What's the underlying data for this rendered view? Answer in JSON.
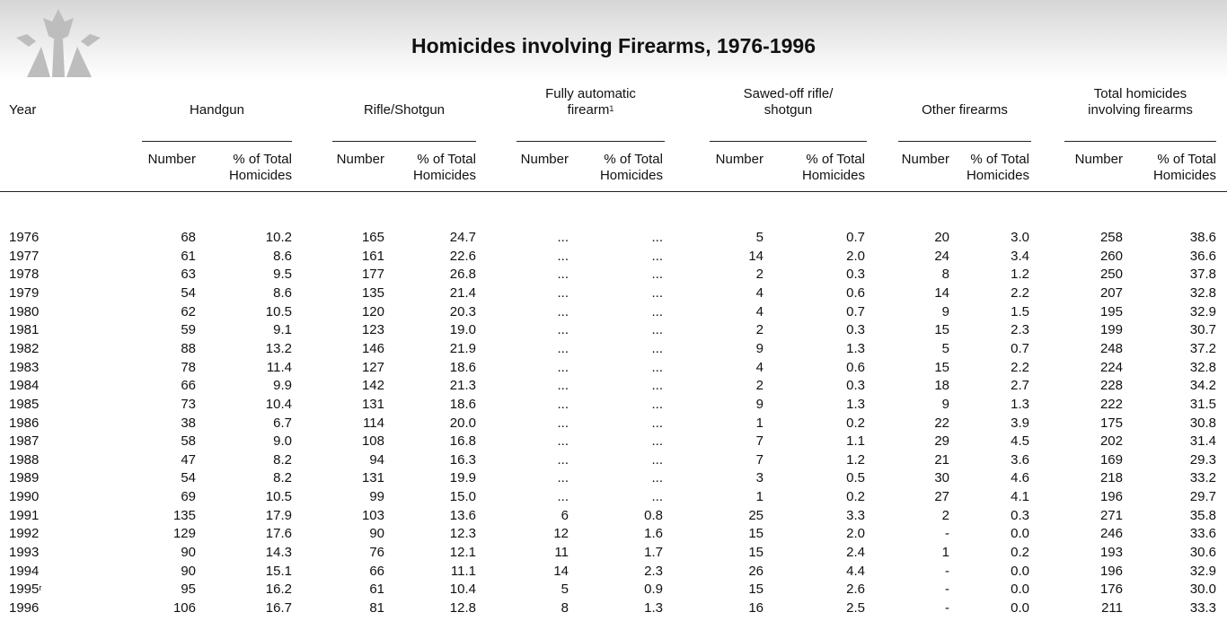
{
  "header": {
    "title": "Homicides involving Firearms, 1976-1996"
  },
  "table": {
    "year_label": "Year",
    "groups": [
      {
        "lines": [
          "Handgun"
        ]
      },
      {
        "lines": [
          "Rifle/Shotgun"
        ]
      },
      {
        "lines": [
          "Fully automatic",
          "firearm"
        ],
        "note": "1"
      },
      {
        "lines": [
          "Sawed-off rifle/",
          "shotgun"
        ]
      },
      {
        "lines": [
          "Other firearms"
        ]
      },
      {
        "lines": [
          "Total homicides",
          "involving firearms"
        ]
      }
    ],
    "subheaders": {
      "number": "Number",
      "percent": [
        "% of Total",
        "Homicides"
      ]
    },
    "rows": [
      {
        "year": "1976",
        "cells": [
          "68",
          "10.2",
          "165",
          "24.7",
          "...",
          "...",
          "5",
          "0.7",
          "20",
          "3.0",
          "258",
          "38.6"
        ]
      },
      {
        "year": "1977",
        "cells": [
          "61",
          "8.6",
          "161",
          "22.6",
          "...",
          "...",
          "14",
          "2.0",
          "24",
          "3.4",
          "260",
          "36.6"
        ]
      },
      {
        "year": "1978",
        "cells": [
          "63",
          "9.5",
          "177",
          "26.8",
          "...",
          "...",
          "2",
          "0.3",
          "8",
          "1.2",
          "250",
          "37.8"
        ]
      },
      {
        "year": "1979",
        "cells": [
          "54",
          "8.6",
          "135",
          "21.4",
          "...",
          "...",
          "4",
          "0.6",
          "14",
          "2.2",
          "207",
          "32.8"
        ]
      },
      {
        "year": "1980",
        "cells": [
          "62",
          "10.5",
          "120",
          "20.3",
          "...",
          "...",
          "4",
          "0.7",
          "9",
          "1.5",
          "195",
          "32.9"
        ]
      },
      {
        "year": "1981",
        "cells": [
          "59",
          "9.1",
          "123",
          "19.0",
          "...",
          "...",
          "2",
          "0.3",
          "15",
          "2.3",
          "199",
          "30.7"
        ]
      },
      {
        "year": "1982",
        "cells": [
          "88",
          "13.2",
          "146",
          "21.9",
          "...",
          "...",
          "9",
          "1.3",
          "5",
          "0.7",
          "248",
          "37.2"
        ]
      },
      {
        "year": "1983",
        "cells": [
          "78",
          "11.4",
          "127",
          "18.6",
          "...",
          "...",
          "4",
          "0.6",
          "15",
          "2.2",
          "224",
          "32.8"
        ]
      },
      {
        "year": "1984",
        "cells": [
          "66",
          "9.9",
          "142",
          "21.3",
          "...",
          "...",
          "2",
          "0.3",
          "18",
          "2.7",
          "228",
          "34.2"
        ]
      },
      {
        "year": "1985",
        "cells": [
          "73",
          "10.4",
          "131",
          "18.6",
          "...",
          "...",
          "9",
          "1.3",
          "9",
          "1.3",
          "222",
          "31.5"
        ]
      },
      {
        "year": "1986",
        "cells": [
          "38",
          "6.7",
          "114",
          "20.0",
          "...",
          "...",
          "1",
          "0.2",
          "22",
          "3.9",
          "175",
          "30.8"
        ]
      },
      {
        "year": "1987",
        "cells": [
          "58",
          "9.0",
          "108",
          "16.8",
          "...",
          "...",
          "7",
          "1.1",
          "29",
          "4.5",
          "202",
          "31.4"
        ]
      },
      {
        "year": "1988",
        "cells": [
          "47",
          "8.2",
          "94",
          "16.3",
          "...",
          "...",
          "7",
          "1.2",
          "21",
          "3.6",
          "169",
          "29.3"
        ]
      },
      {
        "year": "1989",
        "cells": [
          "54",
          "8.2",
          "131",
          "19.9",
          "...",
          "...",
          "3",
          "0.5",
          "30",
          "4.6",
          "218",
          "33.2"
        ]
      },
      {
        "year": "1990",
        "cells": [
          "69",
          "10.5",
          "99",
          "15.0",
          "...",
          "...",
          "1",
          "0.2",
          "27",
          "4.1",
          "196",
          "29.7"
        ]
      },
      {
        "year": "1991",
        "cells": [
          "135",
          "17.9",
          "103",
          "13.6",
          "6",
          "0.8",
          "25",
          "3.3",
          "2",
          "0.3",
          "271",
          "35.8"
        ]
      },
      {
        "year": "1992",
        "cells": [
          "129",
          "17.6",
          "90",
          "12.3",
          "12",
          "1.6",
          "15",
          "2.0",
          "-",
          "0.0",
          "246",
          "33.6"
        ]
      },
      {
        "year": "1993",
        "cells": [
          "90",
          "14.3",
          "76",
          "12.1",
          "11",
          "1.7",
          "15",
          "2.4",
          "1",
          "0.2",
          "193",
          "30.6"
        ]
      },
      {
        "year": "1994",
        "cells": [
          "90",
          "15.1",
          "66",
          "11.1",
          "14",
          "2.3",
          "26",
          "4.4",
          "-",
          "0.0",
          "196",
          "32.9"
        ]
      },
      {
        "year": "1995",
        "mark": "r",
        "cells": [
          "95",
          "16.2",
          "61",
          "10.4",
          "5",
          "0.9",
          "15",
          "2.6",
          "-",
          "0.0",
          "176",
          "30.0"
        ]
      },
      {
        "year": "1996",
        "cells": [
          "106",
          "16.7",
          "81",
          "12.8",
          "8",
          "1.3",
          "16",
          "2.5",
          "-",
          "0.0",
          "211",
          "33.3"
        ]
      }
    ]
  }
}
